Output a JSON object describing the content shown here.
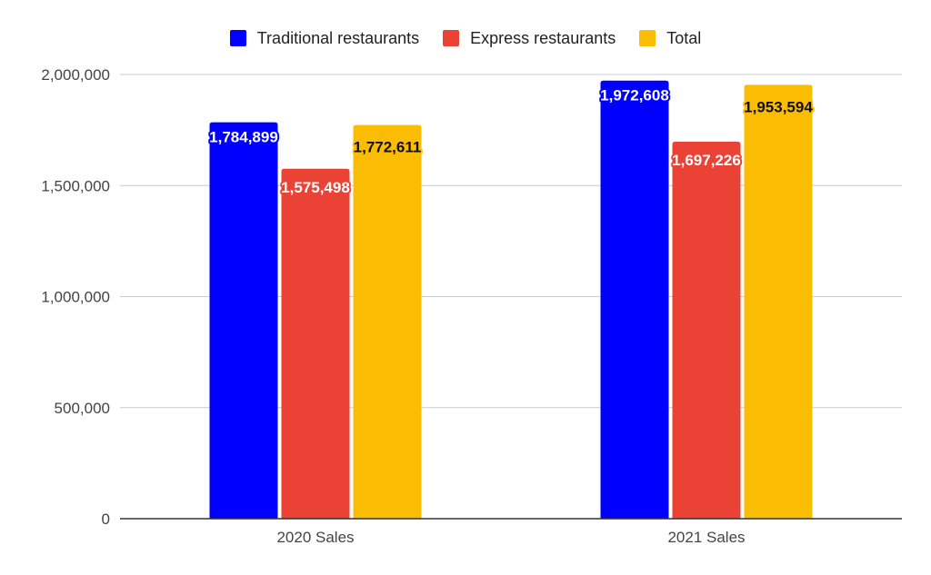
{
  "chart_data": {
    "type": "bar",
    "categories": [
      "2020 Sales",
      "2021 Sales"
    ],
    "series": [
      {
        "name": "Traditional restaurants",
        "values": [
          1784899,
          1972608
        ],
        "labels": [
          "1,784,899",
          "1,972,608"
        ],
        "color": "#0000ff"
      },
      {
        "name": "Express restaurants",
        "values": [
          1575498,
          1697226
        ],
        "labels": [
          "1,575,498",
          "1,697,226"
        ],
        "color": "#ea4335"
      },
      {
        "name": "Total",
        "values": [
          1772611,
          1953594
        ],
        "labels": [
          "1,772,611",
          "1,953,594"
        ],
        "color": "#fbbc04"
      }
    ],
    "ylim": [
      0,
      2000000
    ],
    "yticks": [
      0,
      500000,
      1000000,
      1500000,
      2000000
    ],
    "ytick_labels": [
      "0",
      "500,000",
      "1,000,000",
      "1,500,000",
      "2,000,000"
    ],
    "title": "",
    "xlabel": "",
    "ylabel": "",
    "grid": true,
    "legend_position": "top"
  }
}
